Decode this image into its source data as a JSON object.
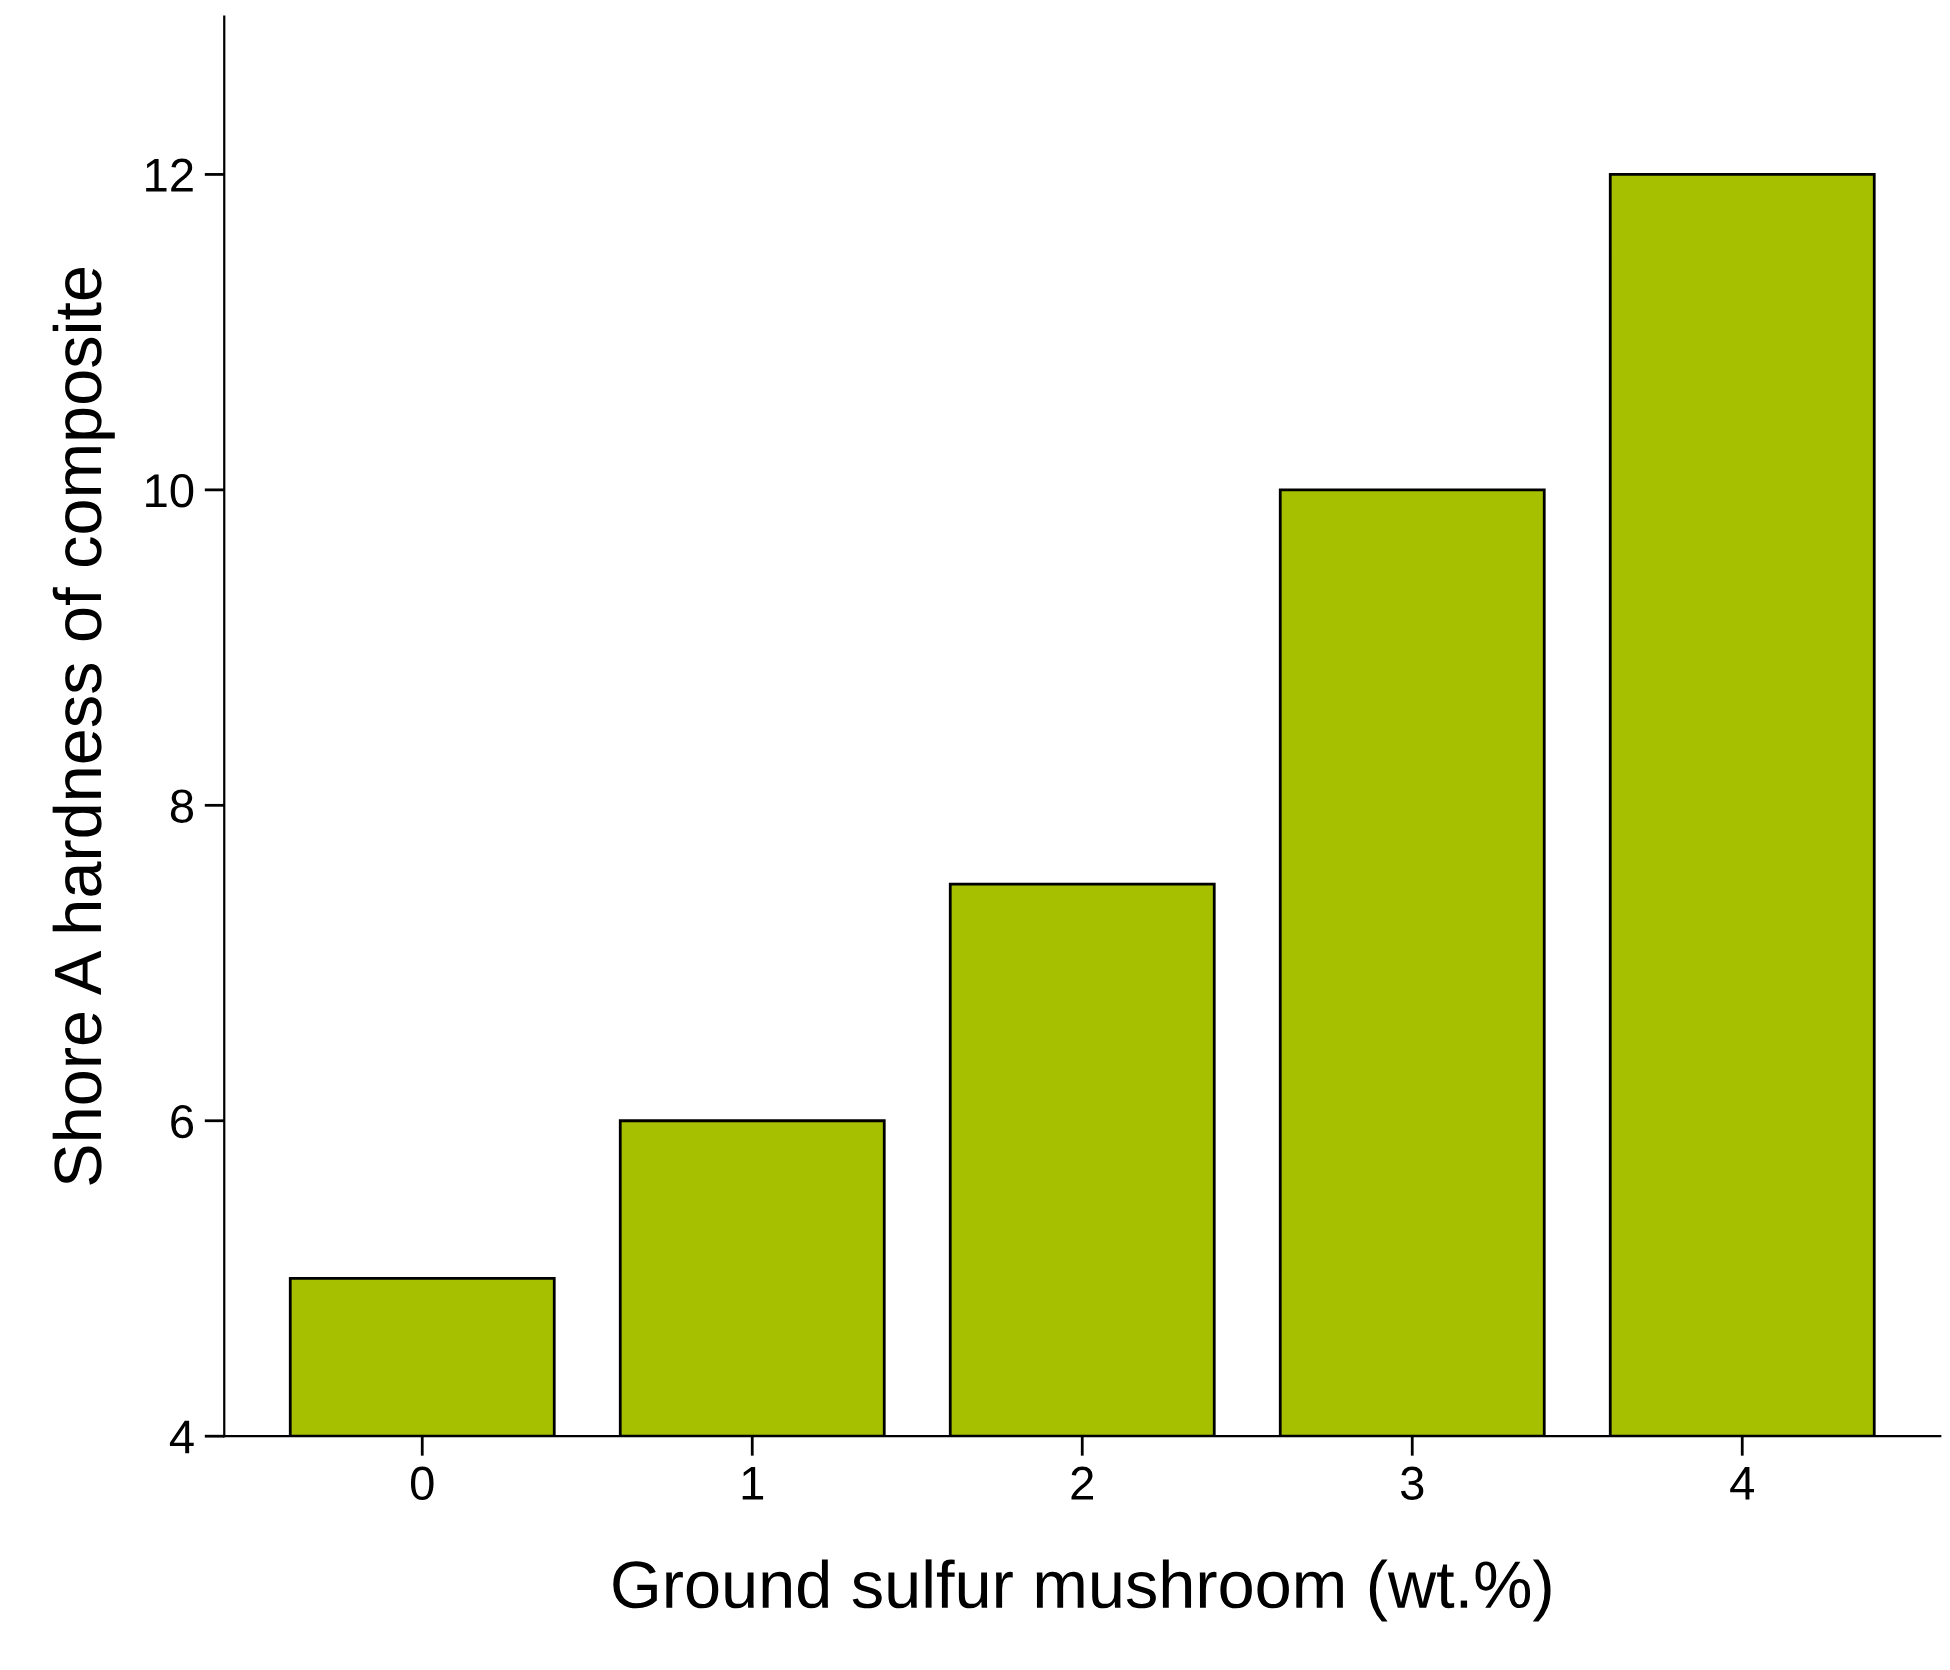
{
  "chart_data": {
    "type": "bar",
    "xlabel": "Ground sulfur mushroom (wt.%)",
    "ylabel": "Shore A hardness of composite",
    "categories": [
      "0",
      "1",
      "2",
      "3",
      "4"
    ],
    "values": [
      5,
      6,
      7.5,
      10,
      12
    ],
    "color": "#a6c000",
    "ylim": [
      4,
      13
    ],
    "yticks": [
      4,
      6,
      8,
      10,
      12
    ],
    "grid": false
  }
}
